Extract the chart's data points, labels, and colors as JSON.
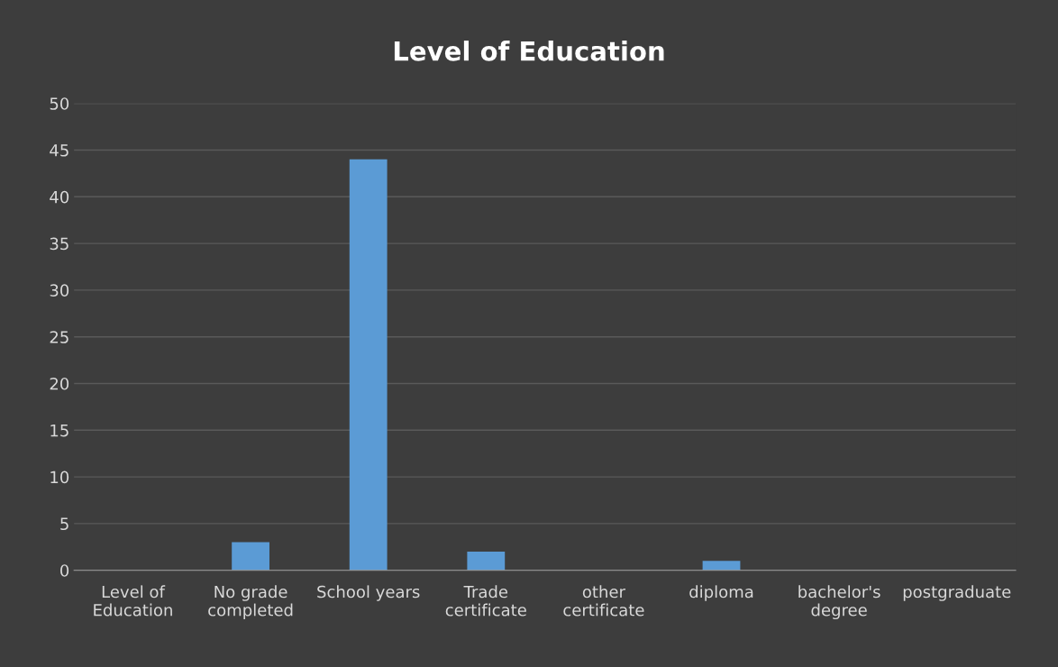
{
  "chart_data": {
    "type": "bar",
    "title": "Level of Education",
    "categories": [
      "Level of\nEducation",
      "No grade\ncompleted",
      "School years",
      "Trade\ncertificate",
      "other\ncertificate",
      "diploma",
      "bachelor's\ndegree",
      "postgraduate"
    ],
    "values": [
      0,
      3,
      44,
      2,
      0,
      1,
      0,
      0
    ],
    "color": "#5b9bd5",
    "ylim": [
      0,
      50
    ],
    "yticks": [
      0,
      5,
      10,
      15,
      20,
      25,
      30,
      35,
      40,
      45,
      50
    ],
    "grid": "y",
    "legend": false
  }
}
